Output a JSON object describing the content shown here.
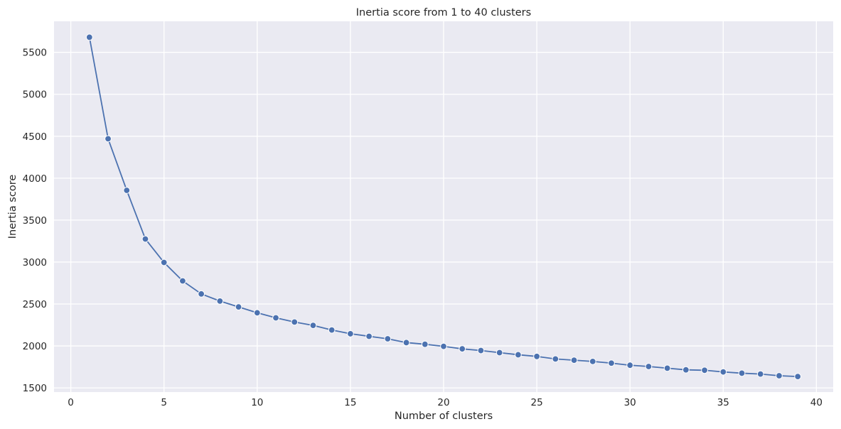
{
  "chart_data": {
    "type": "line",
    "title": "Inertia score from 1 to 40 clusters",
    "xlabel": "Number of clusters",
    "ylabel": "Inertia score",
    "xlim": [
      -0.9,
      40.9
    ],
    "ylim": [
      1450,
      5870
    ],
    "xticks": [
      0,
      5,
      10,
      15,
      20,
      25,
      30,
      35,
      40
    ],
    "yticks": [
      1500,
      2000,
      2500,
      3000,
      3500,
      4000,
      4500,
      5000,
      5500
    ],
    "grid": true,
    "background_color": "#eaeaf2",
    "grid_color": "#ffffff",
    "series": [
      {
        "color": "#4c72b0",
        "marker": "circle",
        "x": [
          1,
          2,
          3,
          4,
          5,
          6,
          7,
          8,
          9,
          10,
          11,
          12,
          13,
          14,
          15,
          16,
          17,
          18,
          19,
          20,
          21,
          22,
          23,
          24,
          25,
          26,
          27,
          28,
          29,
          30,
          31,
          32,
          33,
          34,
          35,
          36,
          37,
          38,
          39
        ],
        "values": [
          5680,
          4470,
          3855,
          3275,
          2995,
          2775,
          2620,
          2535,
          2465,
          2395,
          2335,
          2285,
          2245,
          2190,
          2145,
          2115,
          2085,
          2040,
          2020,
          1995,
          1965,
          1945,
          1920,
          1895,
          1875,
          1845,
          1830,
          1815,
          1795,
          1770,
          1755,
          1735,
          1715,
          1710,
          1690,
          1675,
          1665,
          1645,
          1635
        ]
      }
    ]
  }
}
